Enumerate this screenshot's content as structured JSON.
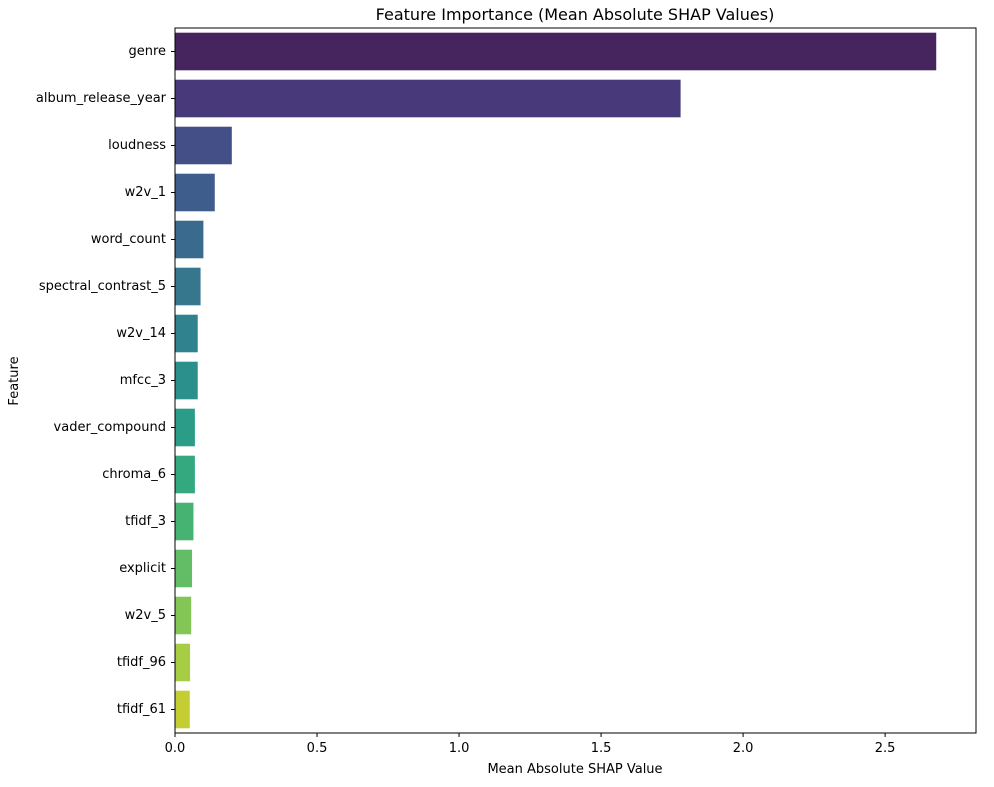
{
  "chart_data": {
    "type": "bar",
    "orientation": "horizontal",
    "title": "Feature Importance (Mean Absolute SHAP Values)",
    "xlabel": "Mean Absolute SHAP Value",
    "ylabel": "Feature",
    "xlim": [
      0,
      2.82
    ],
    "xticks": [
      {
        "value": 0.0,
        "label": "0.0"
      },
      {
        "value": 0.5,
        "label": "0.5"
      },
      {
        "value": 1.0,
        "label": "1.0"
      },
      {
        "value": 1.5,
        "label": "1.5"
      },
      {
        "value": 2.0,
        "label": "2.0"
      },
      {
        "value": 2.5,
        "label": "2.5"
      }
    ],
    "grid": false,
    "categories": [
      "genre",
      "album_release_year",
      "loudness",
      "w2v_1",
      "word_count",
      "spectral_contrast_5",
      "w2v_14",
      "mfcc_3",
      "vader_compound",
      "chroma_6",
      "tfidf_3",
      "explicit",
      "w2v_5",
      "tfidf_96",
      "tfidf_61"
    ],
    "values": [
      2.68,
      1.78,
      0.2,
      0.14,
      0.1,
      0.09,
      0.08,
      0.08,
      0.07,
      0.07,
      0.065,
      0.06,
      0.057,
      0.053,
      0.052
    ],
    "colors": [
      "#46245e",
      "#48397a",
      "#454f87",
      "#3f5d8c",
      "#3a6a8e",
      "#36778e",
      "#30838e",
      "#2b8f8c",
      "#2a9c88",
      "#34a87f",
      "#47b373",
      "#63bd66",
      "#84c656",
      "#a7cd44",
      "#c4cd32"
    ]
  }
}
